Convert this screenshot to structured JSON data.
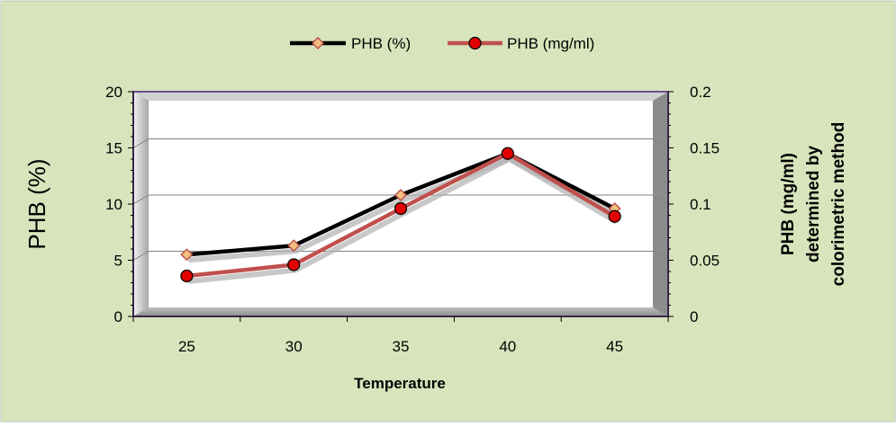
{
  "chart_data": {
    "type": "line",
    "x": [
      25,
      30,
      35,
      40,
      45
    ],
    "series": [
      {
        "name": "PHB (%)",
        "axis": "left",
        "color": "#000000",
        "marker_fill": "#f2c080",
        "marker_stroke": "#c0504d",
        "values": [
          5.5,
          6.3,
          10.8,
          14.5,
          9.6
        ]
      },
      {
        "name": "PHB (mg/ml)",
        "axis": "right",
        "color": "#c0504d",
        "marker_fill": "#e00000",
        "marker_stroke": "#000000",
        "values": [
          0.036,
          0.046,
          0.096,
          0.145,
          0.089
        ]
      }
    ],
    "xlabel": "Temperature",
    "ylabel_left": "PHB (%)",
    "ylabel_right": [
      "PHB (mg/ml)",
      "determined by",
      "colorimetric method"
    ],
    "ylim_left": [
      0,
      20
    ],
    "ylim_right": [
      0,
      0.2
    ],
    "yticks_left": [
      "0",
      "5",
      "10",
      "15",
      "20"
    ],
    "yticks_right": [
      "0",
      "0.05",
      "0.1",
      "0.15",
      "0.2"
    ],
    "xticks": [
      "25",
      "30",
      "35",
      "40",
      "45"
    ],
    "xlim": [
      22.5,
      47.5
    ],
    "grid": true,
    "legend_position": "top-center",
    "colors": {
      "background": "#d8e4bc",
      "frame": "#7a5c9a",
      "plot_bg": "#ffffff",
      "gridline": "#808080"
    }
  }
}
